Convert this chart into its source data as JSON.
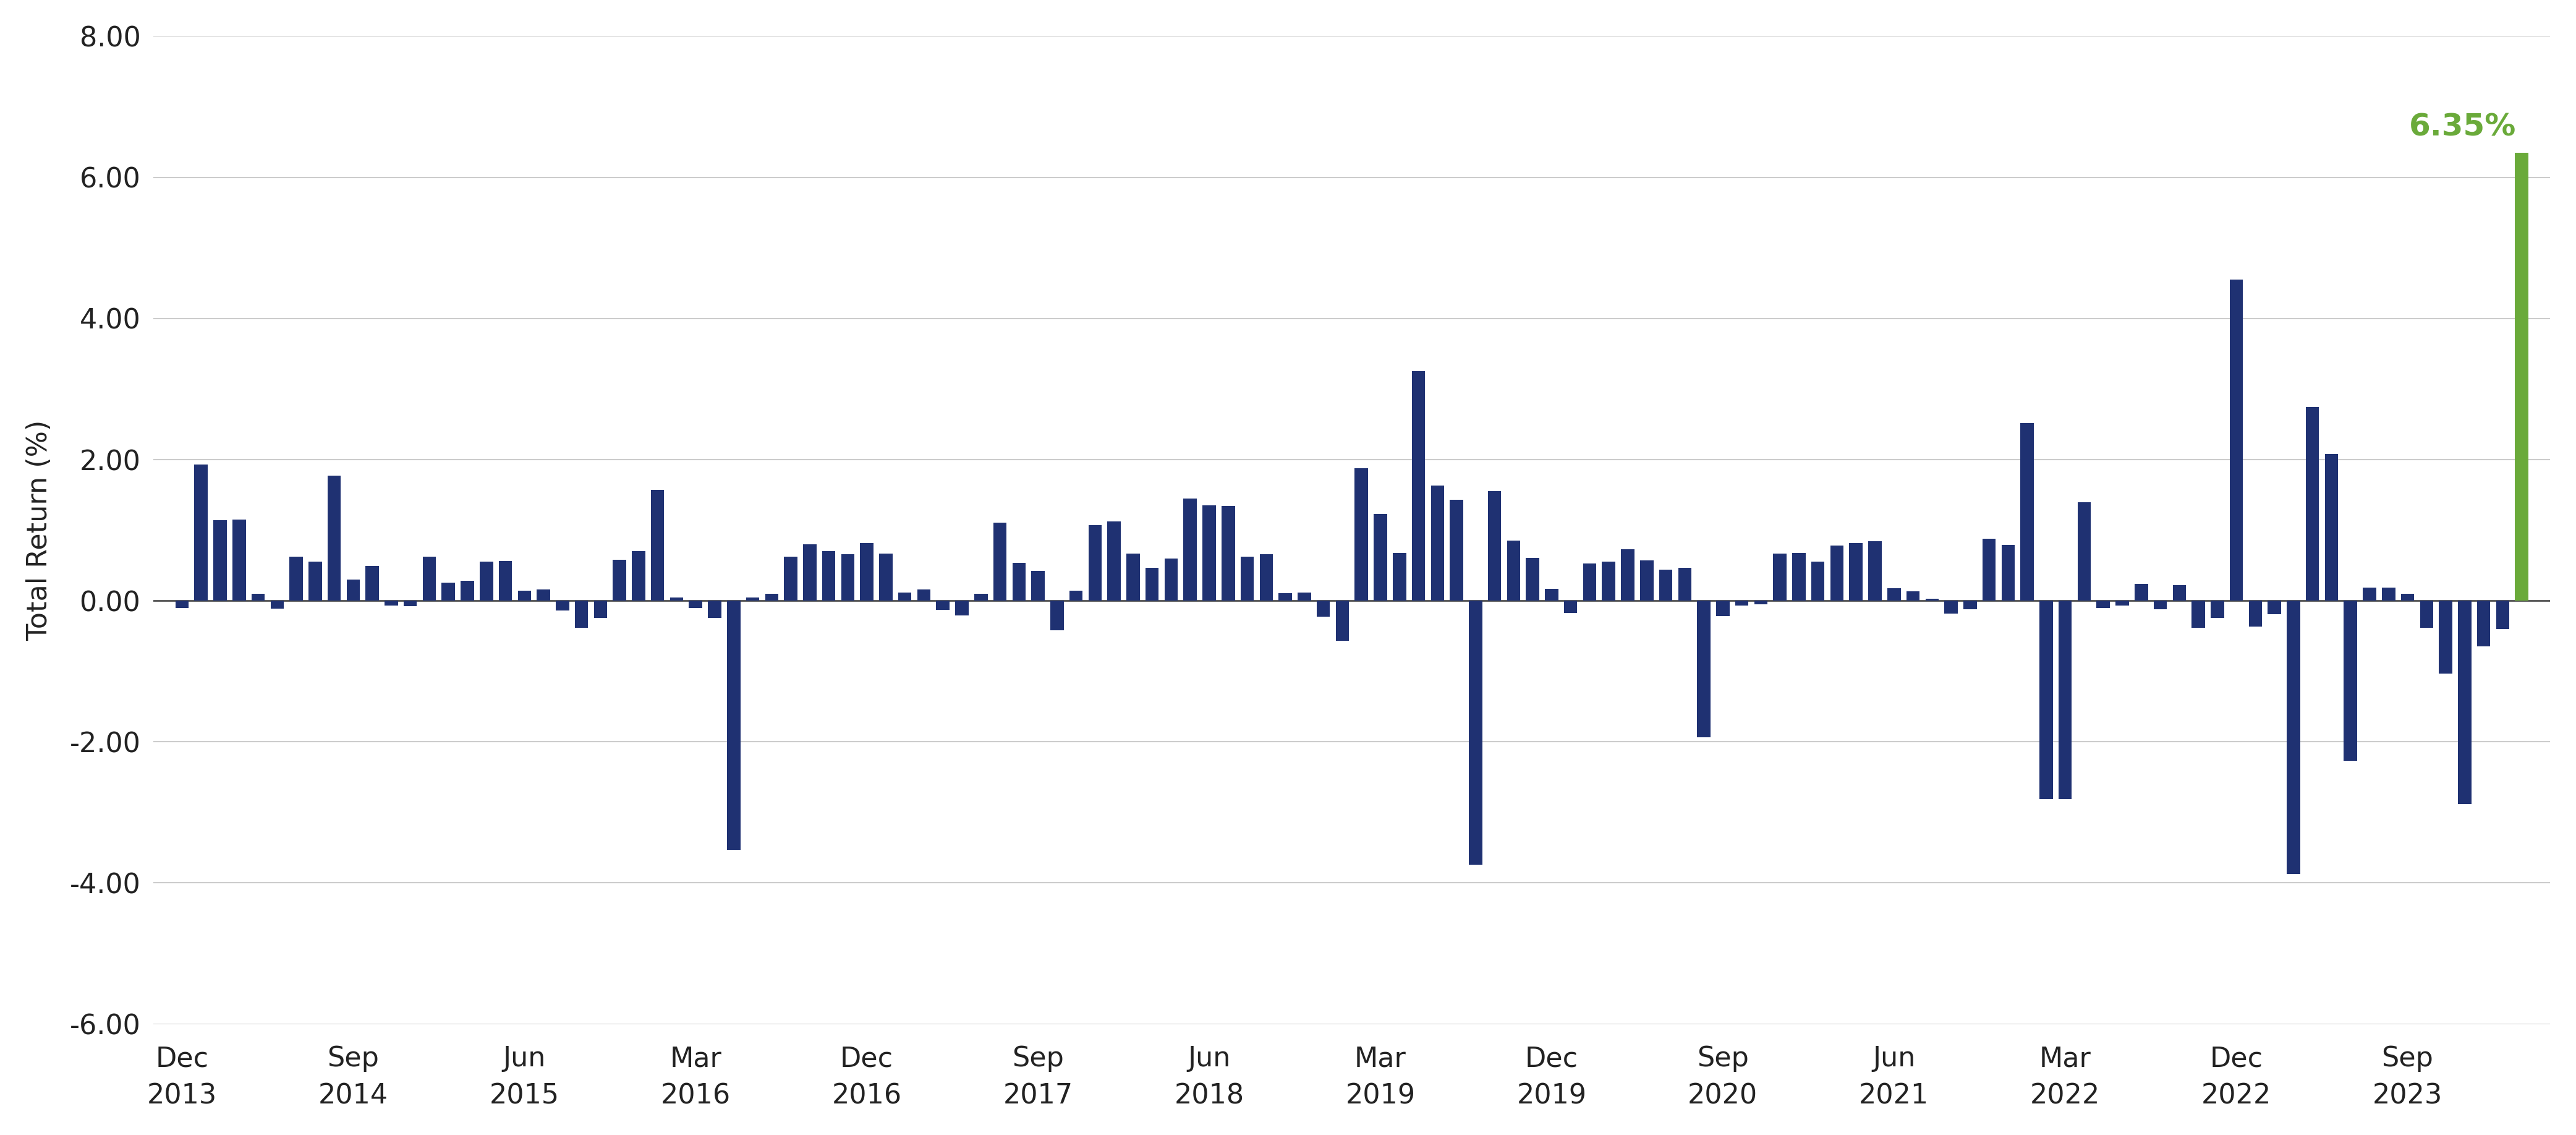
{
  "ylabel": "Total Return (%)",
  "bar_color": "#1f3172",
  "highlight_color": "#6aaa3a",
  "highlight_label": "6.35%",
  "ylim": [
    -6.0,
    8.0
  ],
  "yticks": [
    -6.0,
    -4.0,
    -2.0,
    0.0,
    2.0,
    4.0,
    6.0,
    8.0
  ],
  "background_color": "#ffffff",
  "grid_color": "#cccccc",
  "tick_labels": [
    "Dec\n2013",
    "Sep\n2014",
    "Jun\n2015",
    "Mar\n2016",
    "Dec\n2016",
    "Sep\n2017",
    "Jun\n2018",
    "Mar\n2019",
    "Dec\n2019",
    "Sep\n2020",
    "Jun\n2021",
    "Mar\n2022",
    "Dec\n2022",
    "Sep\n2023"
  ],
  "tick_positions": [
    0,
    9,
    18,
    27,
    36,
    45,
    54,
    63,
    72,
    81,
    90,
    99,
    108,
    117
  ],
  "values": [
    -0.1,
    1.93,
    1.14,
    1.15,
    0.1,
    -0.11,
    0.62,
    0.55,
    1.77,
    0.3,
    0.49,
    -0.07,
    -0.08,
    0.62,
    0.26,
    0.28,
    0.55,
    0.56,
    0.14,
    0.16,
    -0.14,
    -0.38,
    -0.24,
    0.58,
    0.7,
    1.57,
    0.05,
    -0.1,
    -0.24,
    -3.53,
    0.05,
    0.1,
    0.62,
    0.8,
    0.7,
    0.66,
    0.82,
    0.67,
    0.12,
    0.16,
    -0.13,
    -0.21,
    0.1,
    1.11,
    0.54,
    0.42,
    -0.42,
    0.14,
    1.07,
    1.12,
    0.67,
    0.47,
    0.6,
    1.45,
    1.35,
    1.34,
    0.62,
    0.66,
    0.11,
    0.12,
    -0.23,
    -0.57,
    1.88,
    1.23,
    0.68,
    3.25,
    1.63,
    1.43,
    -3.74,
    1.55,
    0.85,
    0.61,
    0.17,
    -0.17,
    0.53,
    0.55,
    0.73,
    0.57,
    0.44,
    0.47,
    -1.94,
    -0.22,
    -0.07,
    -0.05,
    0.67,
    0.68,
    0.55,
    0.78,
    0.82,
    0.84,
    0.18,
    0.13,
    0.03,
    -0.18,
    -0.12,
    0.88,
    0.79,
    2.52,
    -2.81,
    -2.81,
    1.4,
    -0.1,
    -0.07,
    0.24,
    -0.12,
    0.22,
    -0.38,
    -0.24,
    4.55,
    -0.37,
    -0.19,
    -3.87,
    2.75,
    2.08,
    -2.27,
    0.19,
    0.19,
    0.1,
    -0.38,
    -1.03,
    -2.88,
    -0.65,
    -0.4,
    6.35
  ]
}
